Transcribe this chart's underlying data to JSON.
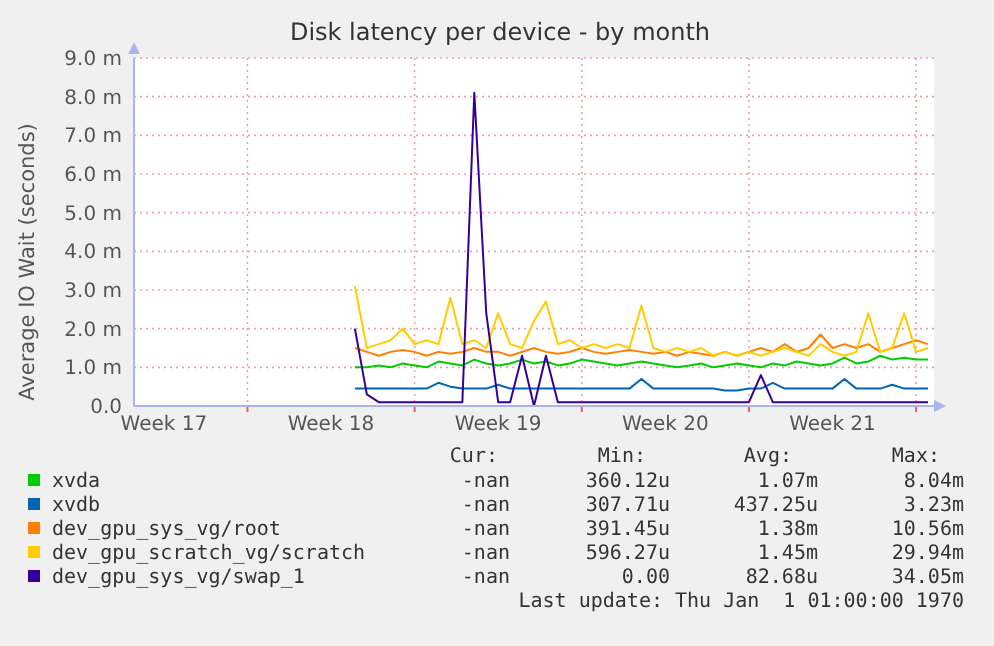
{
  "chart_data": {
    "type": "line",
    "title": "Disk latency per device - by month",
    "ylabel": "Average IO Wait (seconds)",
    "categories": [
      null,
      null,
      "Week 17",
      null,
      null,
      null,
      null,
      null,
      null,
      null,
      null,
      null,
      null,
      null,
      null,
      null,
      "Week 18",
      null,
      null,
      null,
      null,
      null,
      null,
      null,
      null,
      null,
      null,
      null,
      null,
      null,
      "Week 19",
      null,
      null,
      null,
      null,
      null,
      null,
      null,
      null,
      null,
      null,
      null,
      null,
      null,
      "Week 20",
      null,
      null,
      null,
      null,
      null,
      null,
      null,
      null,
      null,
      null,
      null,
      null,
      null,
      "Week 21",
      null,
      null,
      null,
      null,
      null,
      null,
      null,
      null
    ],
    "ylim": [
      0,
      9
    ],
    "yticks": [
      {
        "value": 0,
        "label": "0.0"
      },
      {
        "value": 1,
        "label": "1.0 m"
      },
      {
        "value": 2,
        "label": "2.0 m"
      },
      {
        "value": 3,
        "label": "3.0 m"
      },
      {
        "value": 4,
        "label": "4.0 m"
      },
      {
        "value": 5,
        "label": "5.0 m"
      },
      {
        "value": 6,
        "label": "6.0 m"
      },
      {
        "value": 7,
        "label": "7.0 m"
      },
      {
        "value": 8,
        "label": "8.0 m"
      },
      {
        "value": 9,
        "label": "9.0 m"
      }
    ],
    "grid": true,
    "legend": "bottom",
    "marker": "none",
    "line_style": "solid",
    "series": [
      {
        "name": "xvda",
        "color": "#00cc00",
        "values": [
          null,
          null,
          null,
          null,
          null,
          null,
          null,
          null,
          null,
          null,
          null,
          null,
          null,
          null,
          null,
          null,
          null,
          null,
          1.0,
          1.0,
          1.05,
          1.0,
          1.1,
          1.05,
          1.0,
          1.15,
          1.1,
          1.05,
          1.2,
          1.1,
          1.05,
          1.1,
          1.2,
          1.1,
          1.15,
          1.05,
          1.1,
          1.2,
          1.15,
          1.1,
          1.05,
          1.1,
          1.15,
          1.1,
          1.05,
          1.0,
          1.05,
          1.1,
          1.0,
          1.05,
          1.1,
          1.05,
          1.0,
          1.1,
          1.05,
          1.15,
          1.1,
          1.05,
          1.1,
          1.25,
          1.1,
          1.15,
          1.3,
          1.2,
          1.25,
          1.2,
          1.2
        ]
      },
      {
        "name": "xvdb",
        "color": "#0066b3",
        "values": [
          null,
          null,
          null,
          null,
          null,
          null,
          null,
          null,
          null,
          null,
          null,
          null,
          null,
          null,
          null,
          null,
          null,
          null,
          0.45,
          0.45,
          0.45,
          0.45,
          0.45,
          0.45,
          0.45,
          0.6,
          0.5,
          0.45,
          0.45,
          0.45,
          0.55,
          0.45,
          0.45,
          0.45,
          0.45,
          0.45,
          0.45,
          0.45,
          0.45,
          0.45,
          0.45,
          0.45,
          0.7,
          0.45,
          0.45,
          0.45,
          0.45,
          0.45,
          0.45,
          0.4,
          0.4,
          0.45,
          0.45,
          0.6,
          0.45,
          0.45,
          0.45,
          0.45,
          0.45,
          0.7,
          0.45,
          0.45,
          0.45,
          0.55,
          0.45,
          0.45,
          0.45
        ]
      },
      {
        "name": "dev_gpu_sys_vg/root",
        "color": "#ff8000",
        "values": [
          null,
          null,
          null,
          null,
          null,
          null,
          null,
          null,
          null,
          null,
          null,
          null,
          null,
          null,
          null,
          null,
          null,
          null,
          1.5,
          1.4,
          1.3,
          1.4,
          1.45,
          1.4,
          1.3,
          1.4,
          1.35,
          1.4,
          1.5,
          1.4,
          1.4,
          1.3,
          1.4,
          1.5,
          1.4,
          1.35,
          1.4,
          1.5,
          1.4,
          1.35,
          1.4,
          1.45,
          1.4,
          1.35,
          1.4,
          1.3,
          1.4,
          1.35,
          1.3,
          1.4,
          1.3,
          1.4,
          1.5,
          1.4,
          1.6,
          1.4,
          1.5,
          1.85,
          1.5,
          1.6,
          1.5,
          1.6,
          1.4,
          1.5,
          1.6,
          1.7,
          1.6
        ]
      },
      {
        "name": "dev_gpu_scratch_vg/scratch",
        "color": "#ffcc00",
        "values": [
          null,
          null,
          null,
          null,
          null,
          null,
          null,
          null,
          null,
          null,
          null,
          null,
          null,
          null,
          null,
          null,
          null,
          null,
          3.1,
          1.5,
          1.6,
          1.7,
          2.0,
          1.6,
          1.7,
          1.6,
          2.8,
          1.6,
          1.7,
          1.5,
          2.4,
          1.6,
          1.5,
          2.2,
          2.7,
          1.6,
          1.7,
          1.5,
          1.6,
          1.5,
          1.6,
          1.5,
          2.6,
          1.5,
          1.4,
          1.5,
          1.4,
          1.5,
          1.3,
          1.4,
          1.3,
          1.4,
          1.3,
          1.4,
          1.5,
          1.4,
          1.3,
          1.6,
          1.4,
          1.3,
          1.4,
          2.4,
          1.4,
          1.5,
          2.4,
          1.4,
          1.5
        ]
      },
      {
        "name": "dev_gpu_sys_vg/swap_1",
        "color": "#330099",
        "values": [
          null,
          null,
          null,
          null,
          null,
          null,
          null,
          null,
          null,
          null,
          null,
          null,
          null,
          null,
          null,
          null,
          null,
          null,
          2.0,
          0.3,
          0.1,
          0.1,
          0.1,
          0.1,
          0.1,
          0.1,
          0.1,
          0.1,
          8.1,
          2.4,
          0.1,
          0.1,
          1.3,
          0,
          1.3,
          0.1,
          0.1,
          0.1,
          0.1,
          0.1,
          0.1,
          0.1,
          0.1,
          0.1,
          0.1,
          0.1,
          0.1,
          0.1,
          0.1,
          0.1,
          0.1,
          0.1,
          0.8,
          0.1,
          0.1,
          0.1,
          0.1,
          0.1,
          0.1,
          0.1,
          0.1,
          0.1,
          0.1,
          0.1,
          0.1,
          0.1,
          0.1
        ]
      }
    ],
    "annotations": [
      "Cur:",
      "Min:",
      "Avg:",
      "Max:",
      "-nan",
      "360.12u",
      "1.07m",
      "8.04m",
      "-nan",
      "307.71u",
      "437.25u",
      "3.23m",
      "-nan",
      "391.45u",
      "1.38m",
      "10.56m",
      "-nan",
      "596.27u",
      "1.45m",
      "29.94m",
      "-nan",
      "0.00",
      "82.68u",
      "34.05m",
      "Last update: Thu Jan  1 01:00:00 1970"
    ]
  }
}
